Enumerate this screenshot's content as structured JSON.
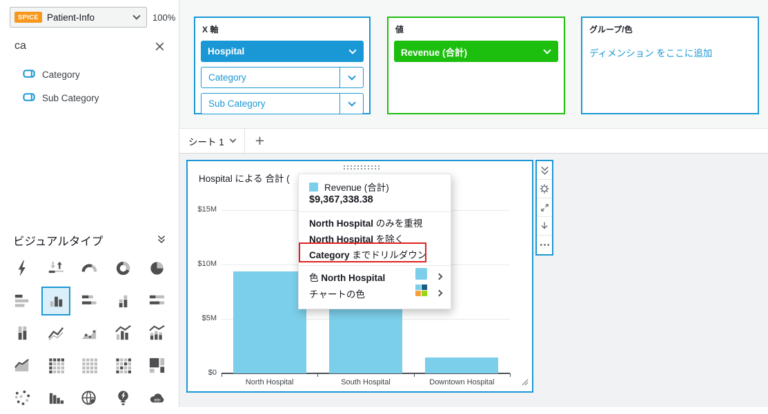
{
  "left_panel": {
    "dataset": {
      "badge": "SPICE",
      "name": "Patient-Info"
    },
    "zoom_level": "100%",
    "search": {
      "value": "ca"
    },
    "fields": [
      {
        "label": "Category"
      },
      {
        "label": "Sub Category"
      }
    ],
    "visual_types": {
      "title": "ビジュアルタイプ",
      "icons": [
        {
          "name": "autograph",
          "selected": false
        },
        {
          "name": "kpi",
          "selected": false
        },
        {
          "name": "gauge",
          "selected": false
        },
        {
          "name": "donut",
          "selected": false
        },
        {
          "name": "pie",
          "selected": false
        },
        {
          "name": "horizontal-bar",
          "selected": false
        },
        {
          "name": "vertical-bar",
          "selected": true
        },
        {
          "name": "horizontal-stacked-bar",
          "selected": false
        },
        {
          "name": "vertical-stacked-bar",
          "selected": false
        },
        {
          "name": "horizontal-stacked-100-bar",
          "selected": false
        },
        {
          "name": "vertical-stacked-100-bar",
          "selected": false
        },
        {
          "name": "line",
          "selected": false
        },
        {
          "name": "area-point",
          "selected": false
        },
        {
          "name": "bar-line-combo",
          "selected": false
        },
        {
          "name": "stacked-bar-line-combo",
          "selected": false
        },
        {
          "name": "area",
          "selected": false
        },
        {
          "name": "pivot-table",
          "selected": false
        },
        {
          "name": "table",
          "selected": false
        },
        {
          "name": "heatmap",
          "selected": false
        },
        {
          "name": "treemap",
          "selected": false
        },
        {
          "name": "scatter",
          "selected": false
        },
        {
          "name": "histogram",
          "selected": false
        },
        {
          "name": "geospatial-map",
          "selected": false
        },
        {
          "name": "insights",
          "selected": false
        },
        {
          "name": "word-cloud",
          "selected": false
        }
      ]
    }
  },
  "field_wells": {
    "x_axis": {
      "label": "X 軸",
      "pills": [
        {
          "label": "Hospital",
          "variant": "filled"
        },
        {
          "label": "Category",
          "variant": "outline"
        },
        {
          "label": "Sub Category",
          "variant": "outline"
        }
      ]
    },
    "value": {
      "label": "値",
      "pills": [
        {
          "label": "Revenue (合計)",
          "variant": "filled-green"
        }
      ]
    },
    "group_color": {
      "label": "グループ/色",
      "placeholder": "ディメンション をここに追加"
    }
  },
  "sheet_bar": {
    "tab": "シート 1",
    "add": "+"
  },
  "visual": {
    "title": "Hospital による 合計 ("
  },
  "toolbar": {
    "icons": [
      "collapse-icon",
      "settings-icon",
      "maximize-icon",
      "export-icon",
      "menu-icon"
    ]
  },
  "context_menu": {
    "header": {
      "swatch_color": "#7CCFEA",
      "series": "Revenue (合計)",
      "value": "$9,367,338.38"
    },
    "focus_item": {
      "bold": "North Hospital",
      "text": " のみを重視"
    },
    "exclude_item": {
      "bold": "North Hospital",
      "text": " を除く"
    },
    "drilldown_item": {
      "bold": "Category",
      "text": " までドリルダウン",
      "annotated": true,
      "annotation_color": "#DF2020"
    },
    "color_item": {
      "prefix": "色 ",
      "bold": "North Hospital",
      "swatch_color": "#7CCFEA"
    },
    "chart_colors_item": {
      "label": "チャートの色",
      "palette": [
        "#7CCFEA",
        "#1F5B7E",
        "#F5A142",
        "#9BD615"
      ]
    }
  },
  "chart_data": {
    "type": "bar",
    "title": "Hospital による 合計 (",
    "categories": [
      "North Hospital",
      "South Hospital",
      "Downtown Hospital"
    ],
    "values": [
      9367338.38,
      6200000,
      1460000
    ],
    "series": [
      {
        "name": "Revenue (合計)",
        "color": "#7CCFEA"
      }
    ],
    "yticks": [
      {
        "label": "$0",
        "value": 0
      },
      {
        "label": "$5M",
        "value": 5000000
      },
      {
        "label": "$10M",
        "value": 10000000
      },
      {
        "label": "$15M",
        "value": 15000000
      }
    ],
    "ylim": [
      0,
      15000000
    ],
    "grid": true,
    "legend_position": "none",
    "tooltip_value": "$9,367,338.38"
  },
  "colors": {
    "accent_blue": "#1A98D5",
    "accent_green": "#1DBF0F",
    "spice_orange": "#F7981D",
    "bar_fill": "#7CCFEA",
    "annotation_red": "#DF2020"
  }
}
